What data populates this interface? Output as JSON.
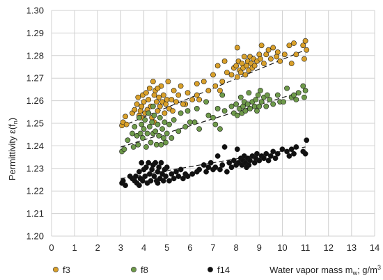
{
  "chart_data": {
    "type": "scatter",
    "ylabel": "Permittivity ε(f",
    "ylabel_sub": "n",
    "ylabel_end": ")",
    "xlabel": "Water vapor mass m",
    "xlabel_sub": "w",
    "xlabel_mid": "; g/m",
    "xlabel_sup": "3",
    "xlim": [
      0,
      14
    ],
    "ylim": [
      1.2,
      1.3
    ],
    "x_ticks": [
      "0",
      "1",
      "2",
      "3",
      "4",
      "5",
      "6",
      "7",
      "8",
      "9",
      "10",
      "11",
      "12",
      "13",
      "14"
    ],
    "y_ticks": [
      "1.20",
      "1.21",
      "1.22",
      "1.23",
      "1.24",
      "1.25",
      "1.26",
      "1.27",
      "1.28",
      "1.29",
      "1.30"
    ],
    "grid": true,
    "legend_position": "bottom",
    "series": [
      {
        "name": "f3",
        "color": "#D9A02A",
        "trend": [
          [
            3.0,
            1.2485
          ],
          [
            11.0,
            1.2825
          ]
        ],
        "points": [
          [
            3.05,
            1.249
          ],
          [
            3.1,
            1.2505
          ],
          [
            3.2,
            1.253
          ],
          [
            3.25,
            1.2495
          ],
          [
            3.5,
            1.2545
          ],
          [
            3.6,
            1.256
          ],
          [
            3.7,
            1.2585
          ],
          [
            3.75,
            1.2615
          ],
          [
            3.8,
            1.2535
          ],
          [
            3.85,
            1.2555
          ],
          [
            3.9,
            1.2575
          ],
          [
            3.95,
            1.2625
          ],
          [
            4.0,
            1.2595
          ],
          [
            4.05,
            1.2545
          ],
          [
            4.1,
            1.2635
          ],
          [
            4.15,
            1.256
          ],
          [
            4.2,
            1.2605
          ],
          [
            4.25,
            1.2655
          ],
          [
            4.3,
            1.2575
          ],
          [
            4.35,
            1.2525
          ],
          [
            4.4,
            1.2685
          ],
          [
            4.45,
            1.2625
          ],
          [
            4.5,
            1.2645
          ],
          [
            4.55,
            1.2595
          ],
          [
            4.6,
            1.2555
          ],
          [
            4.65,
            1.2615
          ],
          [
            4.7,
            1.2575
          ],
          [
            4.75,
            1.2665
          ],
          [
            4.8,
            1.2595
          ],
          [
            4.85,
            1.2625
          ],
          [
            4.9,
            1.2545
          ],
          [
            4.95,
            1.2585
          ],
          [
            5.0,
            1.2605
          ],
          [
            5.05,
            1.2685
          ],
          [
            5.1,
            1.2565
          ],
          [
            5.2,
            1.2605
          ],
          [
            5.3,
            1.2645
          ],
          [
            5.4,
            1.2595
          ],
          [
            5.5,
            1.2625
          ],
          [
            5.6,
            1.2665
          ],
          [
            5.8,
            1.2585
          ],
          [
            5.9,
            1.2635
          ],
          [
            6.1,
            1.2605
          ],
          [
            6.3,
            1.2675
          ],
          [
            6.4,
            1.2605
          ],
          [
            6.6,
            1.2685
          ],
          [
            6.8,
            1.2645
          ],
          [
            7.0,
            1.2715
          ],
          [
            7.1,
            1.2665
          ],
          [
            7.2,
            1.2755
          ],
          [
            7.3,
            1.2645
          ],
          [
            7.4,
            1.2685
          ],
          [
            7.5,
            1.2775
          ],
          [
            7.8,
            1.2715
          ],
          [
            7.9,
            1.2745
          ],
          [
            8.0,
            1.2755
          ],
          [
            8.05,
            1.2705
          ],
          [
            8.1,
            1.2775
          ],
          [
            8.15,
            1.2735
          ],
          [
            8.2,
            1.2725
          ],
          [
            8.25,
            1.2765
          ],
          [
            8.3,
            1.2745
          ],
          [
            8.35,
            1.2795
          ],
          [
            8.4,
            1.2715
          ],
          [
            8.45,
            1.2755
          ],
          [
            8.5,
            1.2775
          ],
          [
            8.55,
            1.2735
          ],
          [
            8.6,
            1.2795
          ],
          [
            8.65,
            1.2765
          ],
          [
            8.7,
            1.2745
          ],
          [
            8.75,
            1.2785
          ],
          [
            8.8,
            1.2755
          ],
          [
            8.9,
            1.2775
          ],
          [
            9.0,
            1.2805
          ],
          [
            9.05,
            1.2785
          ],
          [
            9.1,
            1.2845
          ],
          [
            9.2,
            1.2765
          ],
          [
            9.3,
            1.2805
          ],
          [
            9.4,
            1.2825
          ],
          [
            9.5,
            1.2785
          ],
          [
            9.6,
            1.2835
          ],
          [
            9.8,
            1.2815
          ],
          [
            9.9,
            1.2775
          ],
          [
            10.1,
            1.2805
          ],
          [
            10.3,
            1.2845
          ],
          [
            10.4,
            1.2765
          ],
          [
            10.5,
            1.2855
          ],
          [
            10.6,
            1.2805
          ],
          [
            10.9,
            1.2845
          ],
          [
            10.95,
            1.2785
          ],
          [
            11.0,
            1.2865
          ],
          [
            11.05,
            1.2825
          ],
          [
            6.3,
            1.2625
          ],
          [
            5.7,
            1.2585
          ],
          [
            7.6,
            1.2725
          ],
          [
            4.45,
            1.2505
          ],
          [
            3.9,
            1.2525
          ],
          [
            4.6,
            1.2655
          ],
          [
            5.25,
            1.2555
          ],
          [
            9.75,
            1.2795
          ],
          [
            8.05,
            1.2835
          ]
        ]
      },
      {
        "name": "f8",
        "color": "#6E9A4A",
        "trend": [
          [
            3.0,
            1.2395
          ],
          [
            11.0,
            1.2645
          ]
        ],
        "points": [
          [
            3.05,
            1.2375
          ],
          [
            3.15,
            1.2385
          ],
          [
            3.3,
            1.2425
          ],
          [
            3.5,
            1.2455
          ],
          [
            3.55,
            1.2395
          ],
          [
            3.6,
            1.2485
          ],
          [
            3.7,
            1.2445
          ],
          [
            3.75,
            1.2405
          ],
          [
            3.8,
            1.2525
          ],
          [
            3.85,
            1.2455
          ],
          [
            3.9,
            1.2495
          ],
          [
            3.95,
            1.2435
          ],
          [
            4.0,
            1.2475
          ],
          [
            4.05,
            1.2515
          ],
          [
            4.1,
            1.2395
          ],
          [
            4.15,
            1.2455
          ],
          [
            4.2,
            1.2545
          ],
          [
            4.25,
            1.2485
          ],
          [
            4.3,
            1.2415
          ],
          [
            4.35,
            1.2505
          ],
          [
            4.4,
            1.2455
          ],
          [
            4.45,
            1.2535
          ],
          [
            4.5,
            1.2465
          ],
          [
            4.55,
            1.2405
          ],
          [
            4.6,
            1.2495
          ],
          [
            4.65,
            1.2445
          ],
          [
            4.7,
            1.2525
          ],
          [
            4.75,
            1.2405
          ],
          [
            4.8,
            1.2475
          ],
          [
            4.85,
            1.2435
          ],
          [
            4.9,
            1.2505
          ],
          [
            4.95,
            1.2415
          ],
          [
            5.0,
            1.2455
          ],
          [
            5.1,
            1.2495
          ],
          [
            5.3,
            1.2515
          ],
          [
            5.5,
            1.2465
          ],
          [
            5.6,
            1.2545
          ],
          [
            5.8,
            1.2485
          ],
          [
            5.9,
            1.2555
          ],
          [
            6.2,
            1.2505
          ],
          [
            6.3,
            1.2565
          ],
          [
            6.4,
            1.2475
          ],
          [
            6.7,
            1.2595
          ],
          [
            6.8,
            1.2535
          ],
          [
            7.0,
            1.2525
          ],
          [
            7.1,
            1.2495
          ],
          [
            7.2,
            1.2565
          ],
          [
            7.3,
            1.2475
          ],
          [
            7.4,
            1.2625
          ],
          [
            7.8,
            1.2575
          ],
          [
            7.9,
            1.2545
          ],
          [
            8.0,
            1.2585
          ],
          [
            8.05,
            1.2535
          ],
          [
            8.15,
            1.2565
          ],
          [
            8.2,
            1.2615
          ],
          [
            8.25,
            1.2545
          ],
          [
            8.3,
            1.2575
          ],
          [
            8.35,
            1.2595
          ],
          [
            8.4,
            1.2555
          ],
          [
            8.5,
            1.2585
          ],
          [
            8.55,
            1.2635
          ],
          [
            8.6,
            1.2565
          ],
          [
            8.7,
            1.2595
          ],
          [
            8.8,
            1.2575
          ],
          [
            8.85,
            1.2605
          ],
          [
            8.95,
            1.2625
          ],
          [
            9.0,
            1.2575
          ],
          [
            9.05,
            1.2645
          ],
          [
            9.1,
            1.2595
          ],
          [
            9.2,
            1.2615
          ],
          [
            9.3,
            1.2575
          ],
          [
            9.35,
            1.2625
          ],
          [
            9.45,
            1.2605
          ],
          [
            9.6,
            1.2585
          ],
          [
            9.8,
            1.2625
          ],
          [
            9.9,
            1.2595
          ],
          [
            10.05,
            1.2595
          ],
          [
            10.2,
            1.2655
          ],
          [
            10.4,
            1.2615
          ],
          [
            10.5,
            1.2625
          ],
          [
            10.6,
            1.2605
          ],
          [
            10.9,
            1.2665
          ],
          [
            10.95,
            1.2615
          ],
          [
            11.0,
            1.2645
          ],
          [
            4.4,
            1.2575
          ],
          [
            5.2,
            1.2435
          ],
          [
            6.0,
            1.2505
          ],
          [
            7.5,
            1.2555
          ],
          [
            8.9,
            1.2555
          ],
          [
            10.7,
            1.2635
          ]
        ]
      },
      {
        "name": "f14",
        "color": "#111111",
        "trend": [
          [
            3.0,
            1.2255
          ],
          [
            11.0,
            1.2395
          ]
        ],
        "points": [
          [
            3.05,
            1.2235
          ],
          [
            3.1,
            1.2245
          ],
          [
            3.2,
            1.2225
          ],
          [
            3.4,
            1.2265
          ],
          [
            3.5,
            1.2255
          ],
          [
            3.6,
            1.2245
          ],
          [
            3.65,
            1.2265
          ],
          [
            3.7,
            1.2235
          ],
          [
            3.8,
            1.2285
          ],
          [
            3.85,
            1.2255
          ],
          [
            3.9,
            1.2325
          ],
          [
            3.95,
            1.2245
          ],
          [
            4.0,
            1.2295
          ],
          [
            4.05,
            1.2265
          ],
          [
            4.1,
            1.2305
          ],
          [
            4.15,
            1.2235
          ],
          [
            4.2,
            1.2325
          ],
          [
            4.25,
            1.2275
          ],
          [
            4.3,
            1.2245
          ],
          [
            4.35,
            1.2295
          ],
          [
            4.4,
            1.2315
          ],
          [
            4.45,
            1.2265
          ],
          [
            4.5,
            1.2325
          ],
          [
            4.55,
            1.2245
          ],
          [
            4.6,
            1.2285
          ],
          [
            4.65,
            1.2305
          ],
          [
            4.7,
            1.2255
          ],
          [
            4.75,
            1.2325
          ],
          [
            4.8,
            1.2275
          ],
          [
            4.85,
            1.2245
          ],
          [
            4.9,
            1.2295
          ],
          [
            4.95,
            1.2265
          ],
          [
            5.0,
            1.2305
          ],
          [
            5.1,
            1.2245
          ],
          [
            5.2,
            1.2275
          ],
          [
            5.3,
            1.2255
          ],
          [
            5.4,
            1.2285
          ],
          [
            5.5,
            1.2265
          ],
          [
            5.6,
            1.2295
          ],
          [
            5.8,
            1.2275
          ],
          [
            5.9,
            1.2265
          ],
          [
            6.1,
            1.2275
          ],
          [
            6.3,
            1.2285
          ],
          [
            6.4,
            1.2295
          ],
          [
            6.6,
            1.2315
          ],
          [
            6.7,
            1.2285
          ],
          [
            6.8,
            1.2305
          ],
          [
            7.0,
            1.2295
          ],
          [
            7.1,
            1.2305
          ],
          [
            7.2,
            1.2355
          ],
          [
            7.3,
            1.2295
          ],
          [
            7.4,
            1.2315
          ],
          [
            7.5,
            1.2395
          ],
          [
            7.7,
            1.2325
          ],
          [
            7.8,
            1.2305
          ],
          [
            7.9,
            1.2335
          ],
          [
            8.0,
            1.2315
          ],
          [
            8.05,
            1.2385
          ],
          [
            8.1,
            1.2325
          ],
          [
            8.2,
            1.2345
          ],
          [
            8.25,
            1.2315
          ],
          [
            8.3,
            1.2335
          ],
          [
            8.35,
            1.2355
          ],
          [
            8.4,
            1.2325
          ],
          [
            8.5,
            1.2345
          ],
          [
            8.55,
            1.2315
          ],
          [
            8.6,
            1.2335
          ],
          [
            8.7,
            1.2355
          ],
          [
            8.8,
            1.2325
          ],
          [
            8.85,
            1.2345
          ],
          [
            8.9,
            1.2365
          ],
          [
            9.0,
            1.2335
          ],
          [
            9.1,
            1.2355
          ],
          [
            9.2,
            1.2345
          ],
          [
            9.3,
            1.2365
          ],
          [
            9.4,
            1.2335
          ],
          [
            9.5,
            1.2355
          ],
          [
            9.6,
            1.2375
          ],
          [
            9.7,
            1.2345
          ],
          [
            9.8,
            1.2365
          ],
          [
            10.0,
            1.2385
          ],
          [
            10.2,
            1.2375
          ],
          [
            10.3,
            1.2355
          ],
          [
            10.4,
            1.2385
          ],
          [
            10.5,
            1.2365
          ],
          [
            10.6,
            1.2395
          ],
          [
            10.9,
            1.2375
          ],
          [
            11.0,
            1.2365
          ],
          [
            11.05,
            1.2425
          ],
          [
            3.8,
            1.2225
          ],
          [
            4.6,
            1.2235
          ],
          [
            5.7,
            1.2255
          ],
          [
            6.9,
            1.2325
          ],
          [
            7.6,
            1.2285
          ],
          [
            8.45,
            1.2305
          ]
        ]
      }
    ]
  }
}
